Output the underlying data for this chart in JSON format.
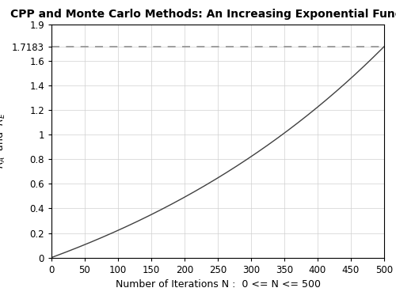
{
  "title": "CPP and Monte Carlo Methods: An Increasing Exponential Function",
  "xlabel": "Number of Iterations N :  0 <= N <= 500",
  "xlim": [
    0,
    500
  ],
  "ylim": [
    0,
    1.9
  ],
  "yticks": [
    0,
    0.2,
    0.4,
    0.6,
    0.8,
    1.0,
    1.2,
    1.4,
    1.6,
    1.9
  ],
  "ytick_labels": [
    "0",
    "0.2",
    "0.4",
    "0.6",
    "0.8",
    "1",
    "1.2",
    "1.4",
    "1.6",
    "1.9"
  ],
  "xticks": [
    0,
    50,
    100,
    150,
    200,
    250,
    300,
    350,
    400,
    450,
    500
  ],
  "dashed_line_y": 1.7183,
  "dashed_line_label": "1.7183",
  "curve_color": "#404040",
  "dashed_color": "#909090",
  "background_color": "#ffffff",
  "grid_color": "#d0d0d0",
  "title_fontsize": 10,
  "label_fontsize": 9,
  "tick_fontsize": 8.5
}
